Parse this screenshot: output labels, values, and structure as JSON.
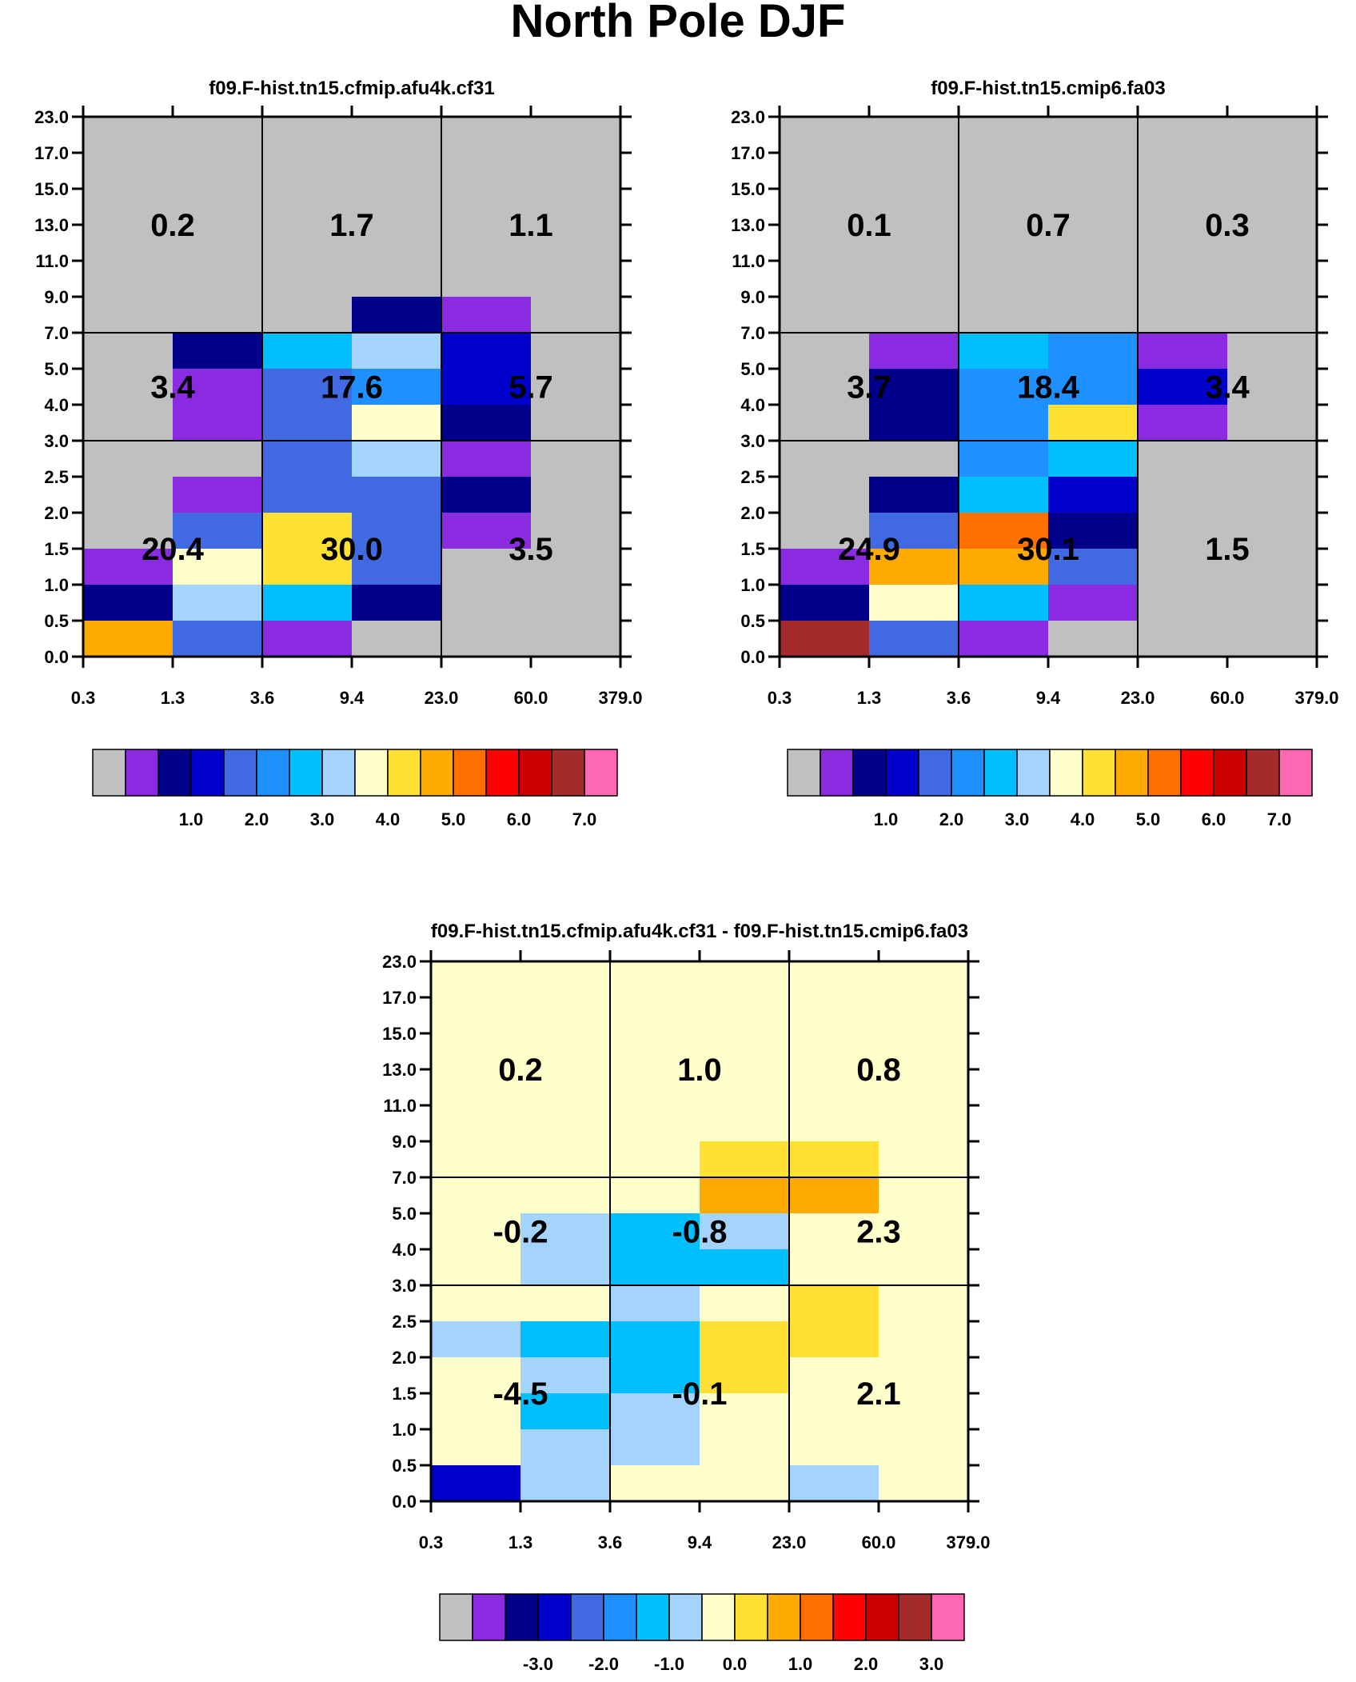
{
  "figure_title": "North Pole DJF",
  "colors": {
    "missing": "#c0c0c0",
    "grid": "#000000",
    "palette": [
      "#c0c0c0",
      "#8a2be2",
      "#00008b",
      "#0000cd",
      "#4169e1",
      "#1e90ff",
      "#00bfff",
      "#a4d3fe",
      "#ffffcc",
      "#fee133",
      "#ffaa00",
      "#ff7000",
      "#ff0000",
      "#cc0000",
      "#a52a2a",
      "#ff69b4"
    ]
  },
  "chart_data": [
    {
      "type": "heatmap",
      "title": "f09.F-hist.tn15.cfmip.afu4k.cf31",
      "x_tick_labels": [
        "0.3",
        "1.3",
        "3.6",
        "9.4",
        "23.0",
        "60.0",
        "379.0"
      ],
      "y_tick_labels": [
        "0.0",
        "0.5",
        "1.0",
        "1.5",
        "2.0",
        "2.5",
        "3.0",
        "4.0",
        "5.0",
        "7.0",
        "9.0",
        "11.0",
        "13.0",
        "15.0",
        "17.0",
        "23.0"
      ],
      "colorbar": {
        "labels": [
          "1.0",
          "2.0",
          "3.0",
          "4.0",
          "5.0",
          "6.0",
          "7.0"
        ],
        "boxes": 16
      },
      "cell_color_index_rows_top_to_bottom": [
        [
          0,
          0,
          0,
          0,
          0,
          0
        ],
        [
          0,
          0,
          0,
          0,
          0,
          0
        ],
        [
          0,
          0,
          0,
          0,
          0,
          0
        ],
        [
          0,
          0,
          0,
          0,
          0,
          0
        ],
        [
          0,
          0,
          0,
          0,
          0,
          0
        ],
        [
          0,
          0,
          0,
          2,
          1,
          0
        ],
        [
          0,
          2,
          6,
          7,
          3,
          0
        ],
        [
          0,
          1,
          4,
          5,
          3,
          0
        ],
        [
          0,
          1,
          4,
          8,
          2,
          0
        ],
        [
          0,
          0,
          4,
          7,
          1,
          0
        ],
        [
          0,
          1,
          4,
          4,
          2,
          0
        ],
        [
          0,
          4,
          9,
          4,
          1,
          0
        ],
        [
          1,
          8,
          9,
          4,
          0,
          0
        ],
        [
          2,
          7,
          6,
          2,
          0,
          0
        ],
        [
          10,
          4,
          1,
          0,
          0,
          0
        ]
      ],
      "block_labels": [
        {
          "text": "0.2",
          "block_col": 0,
          "block_row": 0
        },
        {
          "text": "1.7",
          "block_col": 1,
          "block_row": 0
        },
        {
          "text": "1.1",
          "block_col": 2,
          "block_row": 0
        },
        {
          "text": "3.4",
          "block_col": 0,
          "block_row": 1
        },
        {
          "text": "17.6",
          "block_col": 1,
          "block_row": 1
        },
        {
          "text": "5.7",
          "block_col": 2,
          "block_row": 1
        },
        {
          "text": "20.4",
          "block_col": 0,
          "block_row": 2
        },
        {
          "text": "30.0",
          "block_col": 1,
          "block_row": 2
        },
        {
          "text": "3.5",
          "block_col": 2,
          "block_row": 2
        }
      ]
    },
    {
      "type": "heatmap",
      "title": "f09.F-hist.tn15.cmip6.fa03",
      "x_tick_labels": [
        "0.3",
        "1.3",
        "3.6",
        "9.4",
        "23.0",
        "60.0",
        "379.0"
      ],
      "y_tick_labels": [
        "0.0",
        "0.5",
        "1.0",
        "1.5",
        "2.0",
        "2.5",
        "3.0",
        "4.0",
        "5.0",
        "7.0",
        "9.0",
        "11.0",
        "13.0",
        "15.0",
        "17.0",
        "23.0"
      ],
      "colorbar": {
        "labels": [
          "1.0",
          "2.0",
          "3.0",
          "4.0",
          "5.0",
          "6.0",
          "7.0"
        ],
        "boxes": 16
      },
      "cell_color_index_rows_top_to_bottom": [
        [
          0,
          0,
          0,
          0,
          0,
          0
        ],
        [
          0,
          0,
          0,
          0,
          0,
          0
        ],
        [
          0,
          0,
          0,
          0,
          0,
          0
        ],
        [
          0,
          0,
          0,
          0,
          0,
          0
        ],
        [
          0,
          0,
          0,
          0,
          0,
          0
        ],
        [
          0,
          0,
          0,
          0,
          0,
          0
        ],
        [
          0,
          1,
          6,
          5,
          1,
          0
        ],
        [
          0,
          2,
          5,
          5,
          3,
          0
        ],
        [
          0,
          2,
          5,
          9,
          1,
          0
        ],
        [
          0,
          0,
          5,
          6,
          0,
          0
        ],
        [
          0,
          2,
          6,
          3,
          0,
          0
        ],
        [
          0,
          4,
          11,
          2,
          0,
          0
        ],
        [
          1,
          10,
          10,
          4,
          0,
          0
        ],
        [
          2,
          8,
          6,
          1,
          0,
          0
        ],
        [
          14,
          4,
          1,
          0,
          0,
          0
        ]
      ],
      "block_labels": [
        {
          "text": "0.1",
          "block_col": 0,
          "block_row": 0
        },
        {
          "text": "0.7",
          "block_col": 1,
          "block_row": 0
        },
        {
          "text": "0.3",
          "block_col": 2,
          "block_row": 0
        },
        {
          "text": "3.7",
          "block_col": 0,
          "block_row": 1
        },
        {
          "text": "18.4",
          "block_col": 1,
          "block_row": 1
        },
        {
          "text": "3.4",
          "block_col": 2,
          "block_row": 1
        },
        {
          "text": "24.9",
          "block_col": 0,
          "block_row": 2
        },
        {
          "text": "30.1",
          "block_col": 1,
          "block_row": 2
        },
        {
          "text": "1.5",
          "block_col": 2,
          "block_row": 2
        }
      ]
    },
    {
      "type": "heatmap",
      "title": "f09.F-hist.tn15.cfmip.afu4k.cf31 - f09.F-hist.tn15.cmip6.fa03",
      "x_tick_labels": [
        "0.3",
        "1.3",
        "3.6",
        "9.4",
        "23.0",
        "60.0",
        "379.0"
      ],
      "y_tick_labels": [
        "0.0",
        "0.5",
        "1.0",
        "1.5",
        "2.0",
        "2.5",
        "3.0",
        "4.0",
        "5.0",
        "7.0",
        "9.0",
        "11.0",
        "13.0",
        "15.0",
        "17.0",
        "23.0"
      ],
      "colorbar": {
        "labels": [
          "-3.0",
          "-2.0",
          "-1.0",
          "0.0",
          "1.0",
          "2.0",
          "3.0"
        ],
        "boxes": 16
      },
      "cell_color_index_rows_top_to_bottom": [
        [
          8,
          8,
          8,
          8,
          8,
          8
        ],
        [
          8,
          8,
          8,
          8,
          8,
          8
        ],
        [
          8,
          8,
          8,
          8,
          8,
          8
        ],
        [
          8,
          8,
          8,
          8,
          8,
          8
        ],
        [
          8,
          8,
          8,
          8,
          8,
          8
        ],
        [
          8,
          8,
          8,
          9,
          9,
          8
        ],
        [
          8,
          8,
          8,
          10,
          10,
          8
        ],
        [
          8,
          7,
          6,
          7,
          8,
          8
        ],
        [
          8,
          7,
          6,
          6,
          8,
          8
        ],
        [
          8,
          8,
          7,
          8,
          9,
          8
        ],
        [
          7,
          6,
          6,
          9,
          9,
          8
        ],
        [
          8,
          7,
          6,
          9,
          8,
          8
        ],
        [
          8,
          6,
          7,
          8,
          8,
          8
        ],
        [
          8,
          7,
          7,
          8,
          8,
          8
        ],
        [
          3,
          7,
          8,
          8,
          7,
          8
        ]
      ],
      "block_labels": [
        {
          "text": "0.2",
          "block_col": 0,
          "block_row": 0
        },
        {
          "text": "1.0",
          "block_col": 1,
          "block_row": 0
        },
        {
          "text": "0.8",
          "block_col": 2,
          "block_row": 0
        },
        {
          "text": "-0.2",
          "block_col": 0,
          "block_row": 1
        },
        {
          "text": "-0.8",
          "block_col": 1,
          "block_row": 1
        },
        {
          "text": "2.3",
          "block_col": 2,
          "block_row": 1
        },
        {
          "text": "-4.5",
          "block_col": 0,
          "block_row": 2
        },
        {
          "text": "-0.1",
          "block_col": 1,
          "block_row": 2
        },
        {
          "text": "2.1",
          "block_col": 2,
          "block_row": 2
        }
      ]
    }
  ]
}
